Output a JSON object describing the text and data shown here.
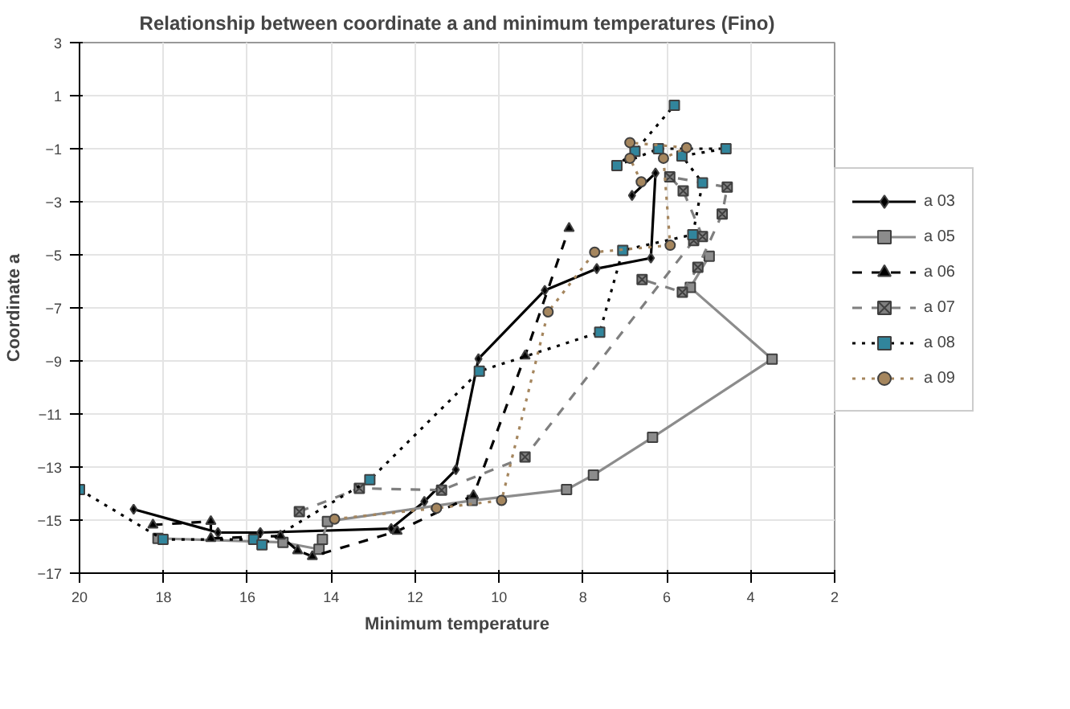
{
  "chart_data": {
    "type": "line",
    "title": "Relationship between coordinate a and minimum temperatures (Fino)",
    "xlabel": "Minimum temperature",
    "ylabel": "Coordinate a",
    "xlim": [
      20,
      2
    ],
    "xticks": [
      20,
      18,
      16,
      14,
      12,
      10,
      8,
      6,
      4,
      2
    ],
    "ylim": [
      -17,
      3
    ],
    "yticks": [
      -17,
      -15,
      -13,
      -11,
      -9,
      -7,
      -5,
      -3,
      -1,
      1,
      3
    ],
    "grid": true,
    "legend": "right",
    "series": [
      {
        "name": "a 03",
        "color": "#000000",
        "marker": "diamond",
        "line_style": "solid",
        "x": [
          18.71,
          16.7,
          15.69,
          12.57,
          11.78,
          11.03,
          10.49,
          8.91,
          7.67,
          6.38,
          6.27,
          6.83
        ],
        "values": [
          -14.59,
          -15.47,
          -15.47,
          -15.32,
          -14.3,
          -13.1,
          -8.92,
          -6.34,
          -5.52,
          -5.12,
          -1.92,
          -2.76
        ]
      },
      {
        "name": "a 05",
        "color": "#8c8c8c",
        "marker": "square",
        "line_style": "solid",
        "x": [
          18.13,
          15.15,
          14.29,
          14.21,
          14.09,
          10.64,
          8.39,
          7.75,
          6.34,
          3.49,
          5.44,
          4.99
        ],
        "values": [
          -15.69,
          -15.84,
          -16.1,
          -15.73,
          -15.05,
          -14.26,
          -13.85,
          -13.3,
          -11.88,
          -8.93,
          -6.23,
          -5.05
        ]
      },
      {
        "name": "a 06",
        "color": "#000000",
        "marker": "triangle",
        "line_style": "dashed",
        "x": [
          18.25,
          16.87,
          16.87,
          15.21,
          14.8,
          14.45,
          12.43,
          10.61,
          9.38,
          8.33
        ],
        "values": [
          -15.18,
          -15.05,
          -15.69,
          -15.6,
          -16.15,
          -16.37,
          -15.42,
          -14.07,
          -8.81,
          -4.0
        ]
      },
      {
        "name": "a 07",
        "color": "#7f7f7f",
        "marker": "cross",
        "line_style": "dashed",
        "x": [
          14.76,
          13.33,
          11.37,
          9.38,
          5.36,
          5.15,
          5.61,
          5.93,
          4.56,
          4.68,
          5.26,
          5.63,
          6.59
        ],
        "values": [
          -14.68,
          -13.8,
          -13.87,
          -12.62,
          -4.46,
          -4.31,
          -2.59,
          -2.06,
          -2.45,
          -3.46,
          -5.47,
          -6.41,
          -5.93
        ]
      },
      {
        "name": "a 08",
        "color": "#31859c",
        "marker": "square",
        "line_style": "dotted",
        "x": [
          20,
          18.01,
          15.85,
          15.65,
          13.08,
          10.47,
          7.6,
          7.05,
          5.38,
          5.15,
          5.64,
          4.59,
          6.2,
          7.19,
          6.76,
          5.82
        ],
        "values": [
          -13.85,
          -15.73,
          -15.73,
          -15.93,
          -13.48,
          -9.39,
          -7.92,
          -4.83,
          -4.24,
          -2.29,
          -1.27,
          -1.0,
          -1.0,
          -1.64,
          -1.1,
          0.64
        ]
      },
      {
        "name": "a 09",
        "color": "#a5865e",
        "marker": "circle",
        "line_style": "dotted",
        "x": [
          13.92,
          11.49,
          9.94,
          8.83,
          7.72,
          5.92,
          6.08,
          5.53,
          6.88,
          6.88,
          6.61
        ],
        "values": [
          -14.96,
          -14.55,
          -14.26,
          -7.15,
          -4.9,
          -4.64,
          -1.36,
          -0.96,
          -0.77,
          -1.36,
          -2.25
        ]
      }
    ]
  }
}
